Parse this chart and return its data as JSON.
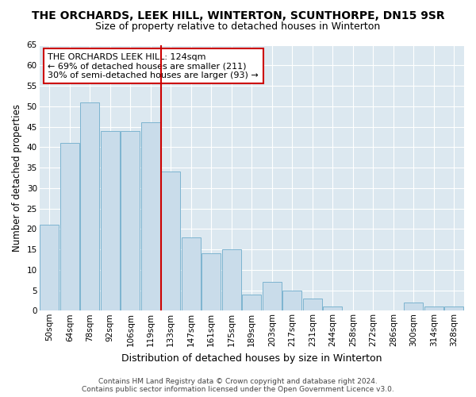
{
  "title": "THE ORCHARDS, LEEK HILL, WINTERTON, SCUNTHORPE, DN15 9SR",
  "subtitle": "Size of property relative to detached houses in Winterton",
  "xlabel": "Distribution of detached houses by size in Winterton",
  "ylabel": "Number of detached properties",
  "categories": [
    "50sqm",
    "64sqm",
    "78sqm",
    "92sqm",
    "106sqm",
    "119sqm",
    "133sqm",
    "147sqm",
    "161sqm",
    "175sqm",
    "189sqm",
    "203sqm",
    "217sqm",
    "231sqm",
    "244sqm",
    "258sqm",
    "272sqm",
    "286sqm",
    "300sqm",
    "314sqm",
    "328sqm"
  ],
  "values": [
    21,
    41,
    51,
    44,
    44,
    46,
    34,
    18,
    14,
    15,
    4,
    7,
    5,
    3,
    1,
    0,
    0,
    0,
    2,
    1,
    1
  ],
  "bar_color": "#c9dcea",
  "bar_edge_color": "#7db4d0",
  "annotation_text": "THE ORCHARDS LEEK HILL: 124sqm\n← 69% of detached houses are smaller (211)\n30% of semi-detached houses are larger (93) →",
  "vline_x_index": 5.5,
  "vline_color": "#cc0000",
  "annotation_box_facecolor": "#ffffff",
  "annotation_box_edgecolor": "#cc0000",
  "ylim": [
    0,
    65
  ],
  "yticks": [
    0,
    5,
    10,
    15,
    20,
    25,
    30,
    35,
    40,
    45,
    50,
    55,
    60,
    65
  ],
  "plot_bg_color": "#dce8f0",
  "fig_bg_color": "#ffffff",
  "grid_color": "#ffffff",
  "footer_line1": "Contains HM Land Registry data © Crown copyright and database right 2024.",
  "footer_line2": "Contains public sector information licensed under the Open Government Licence v3.0.",
  "title_fontsize": 10,
  "subtitle_fontsize": 9,
  "xlabel_fontsize": 9,
  "ylabel_fontsize": 8.5,
  "tick_fontsize": 7.5,
  "annotation_fontsize": 8,
  "footer_fontsize": 6.5
}
